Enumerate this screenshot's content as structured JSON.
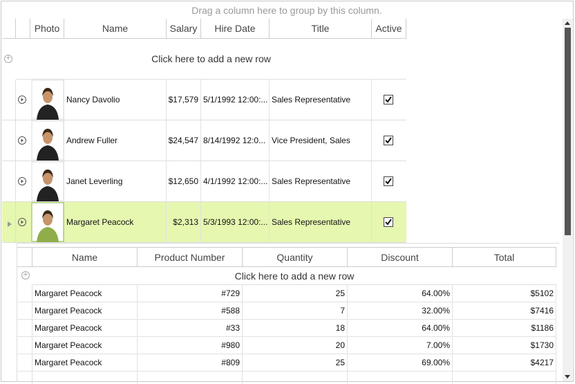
{
  "group_panel": "Drag a column here to group by this column.",
  "columns": [
    "Photo",
    "Name",
    "Salary",
    "Hire Date",
    "Title",
    "Active"
  ],
  "add_row": "Click here to add a new row",
  "rows": [
    {
      "name": "Nancy Davolio",
      "salary": "$17,579",
      "hire_date": "5/1/1992 12:00:...",
      "title": "Sales Representative",
      "active": true,
      "selected": false
    },
    {
      "name": "Andrew Fuller",
      "salary": "$24,547",
      "hire_date": "8/14/1992 12:0...",
      "title": "Vice President, Sales",
      "active": true,
      "selected": false
    },
    {
      "name": "Janet Leverling",
      "salary": "$12,650",
      "hire_date": "4/1/1992 12:00:...",
      "title": "Sales Representative",
      "active": true,
      "selected": false
    },
    {
      "name": "Margaret Peacock",
      "salary": "$2,313",
      "hire_date": "5/3/1993 12:00:...",
      "title": "Sales Representative",
      "active": true,
      "selected": true
    }
  ],
  "detail": {
    "columns": [
      "Name",
      "Product Number",
      "Quantity",
      "Discount",
      "Total"
    ],
    "add_row": "Click here to add a new row",
    "rows": [
      [
        "Margaret Peacock",
        "#729",
        "25",
        "64.00%",
        "$5102"
      ],
      [
        "Margaret Peacock",
        "#588",
        "7",
        "32.00%",
        "$7416"
      ],
      [
        "Margaret Peacock",
        "#33",
        "18",
        "64.00%",
        "$1186"
      ],
      [
        "Margaret Peacock",
        "#980",
        "20",
        "7.00%",
        "$1730"
      ],
      [
        "Margaret Peacock",
        "#809",
        "25",
        "69.00%",
        "$4217"
      ]
    ]
  }
}
